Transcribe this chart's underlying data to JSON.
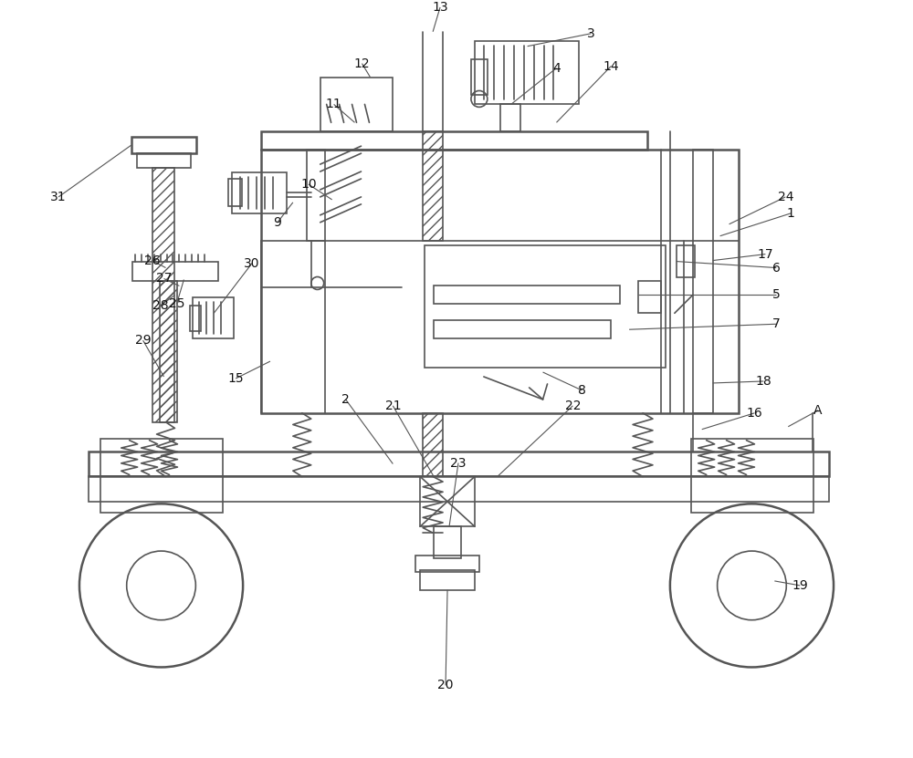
{
  "bg_color": "#ffffff",
  "lc": "#555555",
  "lw": 1.2,
  "lw2": 1.8,
  "fig_w": 10.0,
  "fig_h": 8.31
}
